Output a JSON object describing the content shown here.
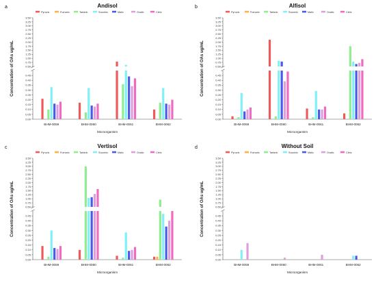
{
  "chart_data": [
    {
      "type": "bar",
      "panel_letter": "a",
      "title": "Andisol",
      "xlabel": "Microorganism",
      "ylabel": "Concentration of OAs  ug/mL",
      "categories": [
        "BHM-0059",
        "BHM-0060",
        "BHM-0061",
        "BHM-0062"
      ],
      "axis_break": true,
      "lower_ylim": [
        0,
        0.5
      ],
      "lower_ticks": [
        "0.00",
        "0.05",
        "0.10",
        "0.15",
        "0.20",
        "0.25",
        "0.30",
        "0.35",
        "0.40",
        "0.45"
      ],
      "upper_ylim": [
        0.5,
        3.5
      ],
      "upper_ticks": [
        "0.50",
        "0.75",
        "1.00",
        "1.25",
        "1.50",
        "1.75",
        "2.00",
        "2.25",
        "2.50",
        "2.75",
        "3.00",
        "3.25",
        "3.50"
      ],
      "legend_position": "top",
      "series": [
        {
          "name": "Pyruvic",
          "color": "#ef5a5a",
          "values": [
            0.21,
            0.17,
            0.8,
            0.1
          ]
        },
        {
          "name": "Fumaric",
          "color": "#ffb347",
          "values": [
            0.0,
            0.0,
            0.0,
            0.0
          ]
        },
        {
          "name": "Tartaric",
          "color": "#90ee90",
          "values": [
            0.1,
            0.07,
            0.36,
            0.17
          ]
        },
        {
          "name": "Succinic",
          "color": "#7ff0f5",
          "values": [
            0.33,
            0.32,
            0.6,
            0.32
          ]
        },
        {
          "name": "Malic",
          "color": "#4a5ae8",
          "values": [
            0.16,
            0.14,
            0.44,
            0.16
          ]
        },
        {
          "name": "Oxalic",
          "color": "#dda0dd",
          "values": [
            0.15,
            0.13,
            0.34,
            0.15
          ]
        },
        {
          "name": "Citric",
          "color": "#f06bc0",
          "values": [
            0.18,
            0.16,
            0.42,
            0.2
          ]
        }
      ]
    },
    {
      "type": "bar",
      "panel_letter": "b",
      "title": "Alfisol",
      "xlabel": "Microorganism",
      "ylabel": "Concentration of OAs  ug/mL",
      "categories": [
        "BHM-0059",
        "BHM-0060",
        "BHM-0061",
        "BHM-0062"
      ],
      "axis_break": true,
      "lower_ylim": [
        0,
        0.5
      ],
      "lower_ticks": [
        "0.00",
        "0.05",
        "0.10",
        "0.15",
        "0.20",
        "0.25",
        "0.30",
        "0.35",
        "0.40",
        "0.45"
      ],
      "upper_ylim": [
        0.5,
        3.5
      ],
      "upper_ticks": [
        "0.50",
        "0.75",
        "1.00",
        "1.25",
        "1.50",
        "1.75",
        "2.00",
        "2.25",
        "2.50",
        "2.75",
        "3.00",
        "3.25",
        "3.50"
      ],
      "legend_position": "top",
      "series": [
        {
          "name": "Pyruvic",
          "color": "#ef5a5a",
          "values": [
            0.03,
            2.15,
            0.11,
            0.06
          ]
        },
        {
          "name": "Fumaric",
          "color": "#ffb347",
          "values": [
            0.0,
            0.0,
            0.0,
            0.0
          ]
        },
        {
          "name": "Tartaric",
          "color": "#90ee90",
          "values": [
            0.02,
            0.03,
            0.02,
            1.75
          ]
        },
        {
          "name": "Succinic",
          "color": "#7ff0f5",
          "values": [
            0.27,
            0.85,
            0.29,
            0.8
          ]
        },
        {
          "name": "Malic",
          "color": "#4a5ae8",
          "values": [
            0.08,
            0.8,
            0.1,
            0.65
          ]
        },
        {
          "name": "Oxalic",
          "color": "#dda0dd",
          "values": [
            0.1,
            0.39,
            0.1,
            0.72
          ]
        },
        {
          "name": "Citric",
          "color": "#f06bc0",
          "values": [
            0.12,
            0.49,
            0.13,
            0.95
          ]
        }
      ]
    },
    {
      "type": "bar",
      "panel_letter": "c",
      "title": "Vertisol",
      "xlabel": "Microorganism",
      "ylabel": "Concentration of OAs  ug/mL",
      "categories": [
        "BHM-0059",
        "BHM-0060",
        "BHM-0061",
        "BHM-0062"
      ],
      "axis_break": true,
      "lower_ylim": [
        0,
        0.5
      ],
      "lower_ticks": [
        "0.00",
        "0.05",
        "0.10",
        "0.15",
        "0.20",
        "0.25",
        "0.30",
        "0.35",
        "0.40",
        "0.45"
      ],
      "upper_ylim": [
        0.5,
        3.5
      ],
      "upper_ticks": [
        "0.50",
        "0.75",
        "1.00",
        "1.25",
        "1.50",
        "1.75",
        "2.00",
        "2.25",
        "2.50",
        "2.75",
        "3.00",
        "3.25",
        "3.50"
      ],
      "legend_position": "top",
      "series": [
        {
          "name": "Pyruvic",
          "color": "#ef5a5a",
          "values": [
            0.14,
            0.1,
            0.04,
            0.03
          ]
        },
        {
          "name": "Fumaric",
          "color": "#ffb347",
          "values": [
            0.0,
            0.0,
            0.0,
            0.03
          ]
        },
        {
          "name": "Tartaric",
          "color": "#90ee90",
          "values": [
            0.03,
            3.0,
            0.02,
            0.95
          ]
        },
        {
          "name": "Succinic",
          "color": "#7ff0f5",
          "values": [
            0.3,
            1.05,
            0.28,
            0.47
          ]
        },
        {
          "name": "Malic",
          "color": "#4a5ae8",
          "values": [
            0.12,
            1.1,
            0.09,
            0.34
          ]
        },
        {
          "name": "Oxalic",
          "color": "#dda0dd",
          "values": [
            0.11,
            1.3,
            0.1,
            0.4
          ]
        },
        {
          "name": "Citric",
          "color": "#f06bc0",
          "values": [
            0.14,
            1.6,
            0.13,
            0.5
          ]
        }
      ]
    },
    {
      "type": "bar",
      "panel_letter": "d",
      "title": "Without Soil",
      "xlabel": "Microorganism",
      "ylabel": "Concentration of OAs  ug/mL",
      "categories": [
        "BHM-0059",
        "BHM-0060",
        "BHM-0061",
        "BHM-0062"
      ],
      "axis_break": true,
      "lower_ylim": [
        0,
        0.5
      ],
      "lower_ticks": [
        "0.00",
        "0.05",
        "0.10",
        "0.15",
        "0.20",
        "0.25",
        "0.30",
        "0.35",
        "0.40",
        "0.45"
      ],
      "upper_ylim": [
        0.5,
        3.5
      ],
      "upper_ticks": [
        "0.50",
        "0.75",
        "1.00",
        "1.25",
        "1.50",
        "1.75",
        "2.00",
        "2.25",
        "2.50",
        "2.75",
        "3.00",
        "3.25",
        "3.50"
      ],
      "legend_position": "top",
      "series": [
        {
          "name": "Pyruvic",
          "color": "#ef5a5a",
          "values": [
            0.0,
            0.0,
            0.0,
            0.0
          ]
        },
        {
          "name": "Fumaric",
          "color": "#ffb347",
          "values": [
            0.0,
            0.0,
            0.0,
            0.0
          ]
        },
        {
          "name": "Tartaric",
          "color": "#90ee90",
          "values": [
            0.0,
            0.0,
            0.0,
            0.0
          ]
        },
        {
          "name": "Succinic",
          "color": "#7ff0f5",
          "values": [
            0.1,
            0.0,
            0.0,
            0.04
          ]
        },
        {
          "name": "Malic",
          "color": "#4a5ae8",
          "values": [
            0.0,
            0.0,
            0.0,
            0.04
          ]
        },
        {
          "name": "Oxalic",
          "color": "#dda0dd",
          "values": [
            0.17,
            0.02,
            0.05,
            0.0
          ]
        },
        {
          "name": "Citric",
          "color": "#f06bc0",
          "values": [
            0.0,
            0.0,
            0.0,
            0.0
          ]
        }
      ]
    }
  ]
}
